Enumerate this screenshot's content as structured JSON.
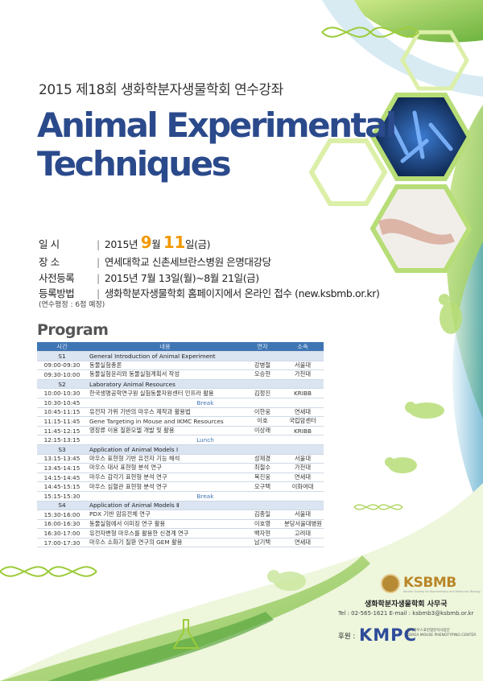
{
  "header": {
    "subtitle": "2015 제18회 생화학분자생물학회 연수강좌",
    "title_line1": "Animal Experimental",
    "title_line2": "Techniques"
  },
  "info": {
    "date_label": "일    시",
    "date_year": "2015년",
    "date_month": "9",
    "date_month_unit": "월",
    "date_day": "11",
    "date_day_unit": "일(금)",
    "place_label": "장    소",
    "place_value": "연세대학교 신촌세브란스병원 은명대강당",
    "prereg_label": "사전등록",
    "prereg_value": "2015년 7월 13일(월)~8월 21일(금)",
    "method_label": "등록방법",
    "method_value": "생화학분자생물학회 홈페이지에서 온라인 접수 (new.ksbmb.or.kr)",
    "note": "(연수평정 : 6점 예정)"
  },
  "program": {
    "heading": "Program",
    "headers": [
      "시간",
      "내용",
      "연자",
      "소속"
    ],
    "rows": [
      {
        "type": "session",
        "time": "S1",
        "content": "General Introduction of Animal Experiment"
      },
      {
        "type": "talk",
        "time": "09:00-09:30",
        "content": "동물실험총론",
        "speaker": "강병철",
        "org": "서울대"
      },
      {
        "type": "talk",
        "time": "09:30-10:00",
        "content": "동물실험윤리와 동물실험계획서 작성",
        "speaker": "오승현",
        "org": "가천대"
      },
      {
        "type": "session",
        "time": "S2",
        "content": "Laboratory Animal Resources"
      },
      {
        "type": "talk",
        "time": "10:00-10:30",
        "content": "한국생명공학연구원 실험동물자원센터 인프라 활용",
        "speaker": "김정진",
        "org": "KRIBB"
      },
      {
        "type": "break",
        "time": "10:30-10:45",
        "content": "Break"
      },
      {
        "type": "talk",
        "time": "10:45-11:15",
        "content": "유전자 가위 기반의 마우스 제작과 활용법",
        "speaker": "이한웅",
        "org": "연세대"
      },
      {
        "type": "talk",
        "time": "11:15-11:45",
        "content": "Gene Targeting in Mouse and IKMC Resources",
        "speaker": "이호",
        "org": "국립암센터"
      },
      {
        "type": "talk",
        "time": "11:45-12:15",
        "content": "영장류 이용 질환모델 개발 및 활용",
        "speaker": "이상래",
        "org": "KRIBB"
      },
      {
        "type": "break",
        "time": "12:15-13:15",
        "content": "Lunch"
      },
      {
        "type": "session",
        "time": "S3",
        "content": "Application of Animal Models Ⅰ"
      },
      {
        "type": "talk",
        "time": "13:15-13:45",
        "content": "마우스 표현형 기반 유전자 기능 해석",
        "speaker": "성제경",
        "org": "서울대"
      },
      {
        "type": "talk",
        "time": "13:45-14:15",
        "content": "마우스 대사 표현형 분석 연구",
        "speaker": "최철수",
        "org": "가천대"
      },
      {
        "type": "talk",
        "time": "14:15-14:45",
        "content": "마우스 감각기 표현형 분석 연구",
        "speaker": "복진웅",
        "org": "연세대"
      },
      {
        "type": "talk",
        "time": "14:45-15:15",
        "content": "마우스 심혈관 표현형 분석 연구",
        "speaker": "오구택",
        "org": "이화여대"
      },
      {
        "type": "break",
        "time": "15:15-15:30",
        "content": "Break"
      },
      {
        "type": "session",
        "time": "S4",
        "content": "Application of Animal Models Ⅱ"
      },
      {
        "type": "talk",
        "time": "15:30-16:00",
        "content": "PDX 기반 암유전체 연구",
        "speaker": "김종일",
        "org": "서울대"
      },
      {
        "type": "talk",
        "time": "16:00-16:30",
        "content": "동물실험에서 이미징 연구 활용",
        "speaker": "이호영",
        "org": "분당서울대병원"
      },
      {
        "type": "talk",
        "time": "16:30-17:00",
        "content": "유전자변형 마우스를 활용한 신경계 연구",
        "speaker": "백자현",
        "org": "고려대"
      },
      {
        "type": "talk",
        "time": "17:00-17:30",
        "content": "마우스 소화기 질환 연구의 GEM 활용",
        "speaker": "남기택",
        "org": "연세대"
      }
    ]
  },
  "footer": {
    "ksbmb_name": "KSBMB",
    "ksbmb_sub": "Korean Society for Biochemistry and Molecular Biology",
    "secretary": "생화학분자생물학회 사무국",
    "contact": "Tel : 02-565-1621   E-mail : ksbmb3@ksbmb.or.kr",
    "sponsor_label": "후원 :",
    "kmpc_name": "KMPC",
    "kmpc_sub_ko": "국가마우스표현형분석사업단",
    "kmpc_sub_en": "KOREA MOUSE PHENOTYPING CENTER"
  },
  "colors": {
    "title": "#2b4a8c",
    "accent_orange": "#f39800",
    "table_header": "#3f75b3",
    "session_row": "#dbe5f2",
    "green_wave": "#9ccc3a",
    "gold": "#b98628"
  }
}
